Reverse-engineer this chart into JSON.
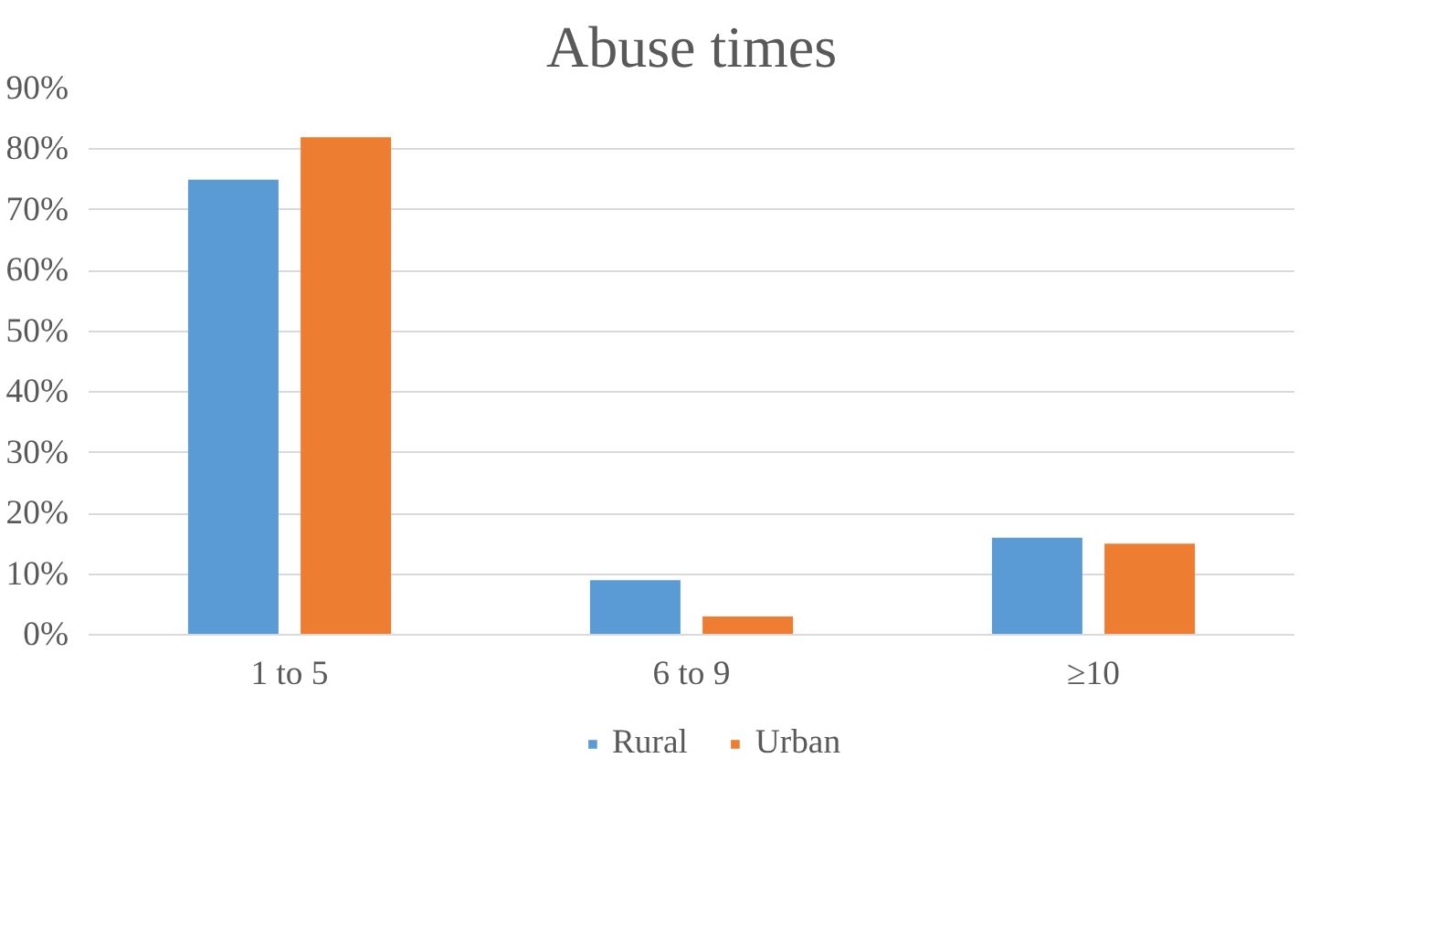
{
  "chart_data": {
    "type": "bar",
    "title": "Abuse times",
    "categories": [
      "1 to 5",
      "6 to 9",
      "≥10"
    ],
    "series": [
      {
        "name": "Rural",
        "color": "#5b9bd5",
        "values": [
          75,
          9,
          16
        ]
      },
      {
        "name": "Urban",
        "color": "#ed7d31",
        "values": [
          82,
          3,
          15
        ]
      }
    ],
    "ylim": [
      0,
      90
    ],
    "yticks": [
      {
        "value": 0,
        "label": "0%"
      },
      {
        "value": 10,
        "label": "10%"
      },
      {
        "value": 20,
        "label": "20%"
      },
      {
        "value": 30,
        "label": "30%"
      },
      {
        "value": 40,
        "label": "40%"
      },
      {
        "value": 50,
        "label": "50%"
      },
      {
        "value": 60,
        "label": "60%"
      },
      {
        "value": 70,
        "label": "70%"
      },
      {
        "value": 80,
        "label": "80%"
      },
      {
        "value": 90,
        "label": "90%"
      }
    ],
    "grid": "y",
    "legend": "bottom"
  }
}
